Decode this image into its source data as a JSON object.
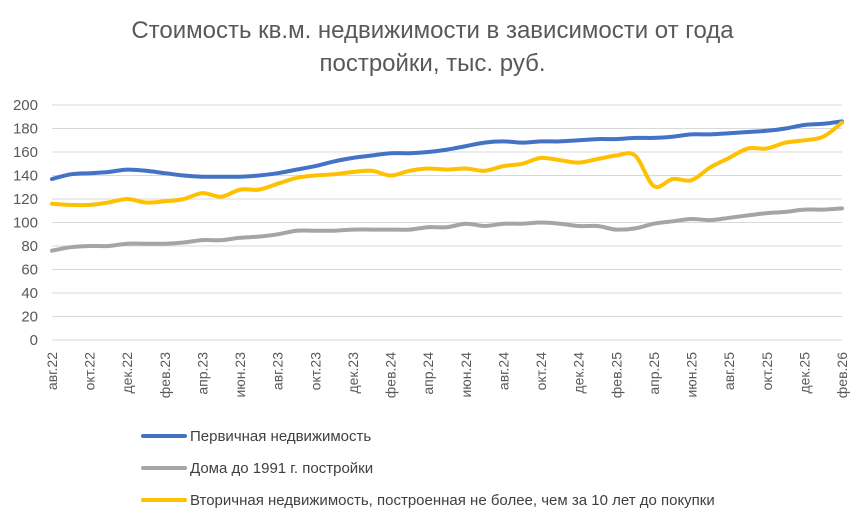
{
  "chart_data": {
    "type": "line",
    "title_lines": [
      "Стоимость кв.м. недвижимости в зависимости от года",
      "постройки, тыс. руб."
    ],
    "xlabel": "",
    "ylabel": "",
    "ylim": [
      0,
      200
    ],
    "yticks": [
      0,
      20,
      40,
      60,
      80,
      100,
      120,
      140,
      160,
      180,
      200
    ],
    "grid": true,
    "legend_position": "bottom",
    "x": [
      "авг.22",
      "сен.22",
      "окт.22",
      "ноя.22",
      "дек.22",
      "янв.23",
      "фев.23",
      "мар.23",
      "апр.23",
      "май.23",
      "июн.23",
      "июл.23",
      "авг.23",
      "сен.23",
      "окт.23",
      "ноя.23",
      "дек.23",
      "янв.24",
      "фев.24",
      "мар.24",
      "апр.24",
      "май.24",
      "июн.24",
      "июл.24",
      "авг.24",
      "сен.24",
      "окт.24",
      "ноя.24",
      "дек.24",
      "янв.25",
      "фев.25",
      "мар.25",
      "апр.25",
      "май.25",
      "июн.25",
      "июл.25",
      "авг.25",
      "сен.25",
      "окт.25",
      "ноя.25",
      "дек.25",
      "янв.26",
      "фев.26"
    ],
    "xtick_labels": [
      "авг.22",
      "окт.22",
      "дек.22",
      "фев.23",
      "апр.23",
      "июн.23",
      "авг.23",
      "окт.23",
      "дек.23",
      "фев.24",
      "апр.24",
      "июн.24",
      "авг.24",
      "окт.24",
      "дек.24",
      "фев.25",
      "апр.25",
      "июн.25",
      "авг.25",
      "окт.25",
      "дек.25",
      "фев.26"
    ],
    "series": [
      {
        "name": "Первичная недвижимость",
        "color": "#4472C4",
        "values": [
          137,
          141,
          142,
          143,
          145,
          144,
          142,
          140,
          139,
          139,
          139,
          140,
          142,
          145,
          148,
          152,
          155,
          157,
          159,
          159,
          160,
          162,
          165,
          168,
          169,
          168,
          169,
          169,
          170,
          171,
          171,
          172,
          172,
          173,
          175,
          175,
          176,
          177,
          178,
          180,
          183,
          184,
          186
        ]
      },
      {
        "name": "Дома до 1991 г. постройки",
        "color": "#A5A5A5",
        "values": [
          76,
          79,
          80,
          80,
          82,
          82,
          82,
          83,
          85,
          85,
          87,
          88,
          90,
          93,
          93,
          93,
          94,
          94,
          94,
          94,
          96,
          96,
          99,
          97,
          99,
          99,
          100,
          99,
          97,
          97,
          94,
          95,
          99,
          101,
          103,
          102,
          104,
          106,
          108,
          109,
          111,
          111,
          112
        ]
      },
      {
        "name": "Вторичная недвижимость, построенная не более, чем за 10 лет до покупки",
        "color": "#FFC000",
        "values": [
          116,
          115,
          115,
          117,
          120,
          117,
          118,
          120,
          125,
          122,
          128,
          128,
          133,
          138,
          140,
          141,
          143,
          144,
          140,
          144,
          146,
          145,
          146,
          144,
          148,
          150,
          155,
          153,
          151,
          154,
          157,
          157,
          131,
          137,
          136,
          147,
          155,
          163,
          163,
          168,
          170,
          173,
          185
        ]
      }
    ]
  }
}
